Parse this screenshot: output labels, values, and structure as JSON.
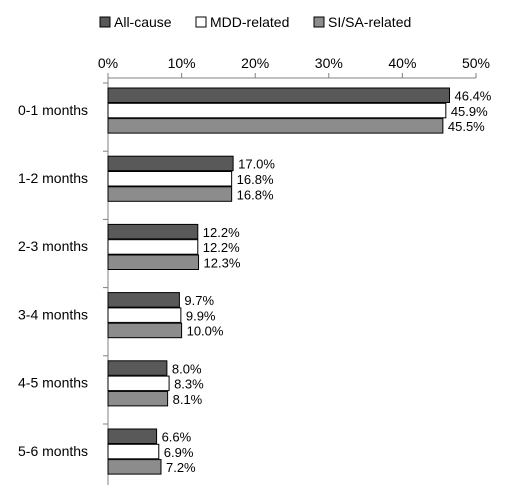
{
  "chart_data": {
    "type": "bar",
    "orientation": "horizontal",
    "categories": [
      "0-1 months",
      "1-2 months",
      "2-3 months",
      "3-4 months",
      "4-5 months",
      "5-6 months"
    ],
    "series": [
      {
        "name": "All-cause",
        "color": "#595959",
        "values": [
          46.4,
          17.0,
          12.2,
          9.7,
          8.0,
          6.6
        ],
        "labels": [
          "46.4%",
          "17.0%",
          "12.2%",
          "9.7%",
          "8.0%",
          "6.6%"
        ]
      },
      {
        "name": "MDD-related",
        "color": "#ffffff",
        "values": [
          45.9,
          16.8,
          12.2,
          9.9,
          8.3,
          6.9
        ],
        "labels": [
          "45.9%",
          "16.8%",
          "12.2%",
          "9.9%",
          "8.3%",
          "6.9%"
        ]
      },
      {
        "name": "SI/SA-related",
        "color": "#8c8c8c",
        "values": [
          45.5,
          16.8,
          12.3,
          10.0,
          8.1,
          7.2
        ],
        "labels": [
          "45.5%",
          "16.8%",
          "12.3%",
          "10.0%",
          "8.1%",
          "7.2%"
        ]
      }
    ],
    "x_axis": {
      "min": 0,
      "max": 50,
      "ticks": [
        0,
        10,
        20,
        30,
        40,
        50
      ],
      "tick_labels": [
        "0%",
        "10%",
        "20%",
        "30%",
        "40%",
        "50%"
      ],
      "position": "top"
    },
    "title": "",
    "xlabel": "",
    "ylabel": "",
    "grid": false,
    "legend_position": "top"
  }
}
